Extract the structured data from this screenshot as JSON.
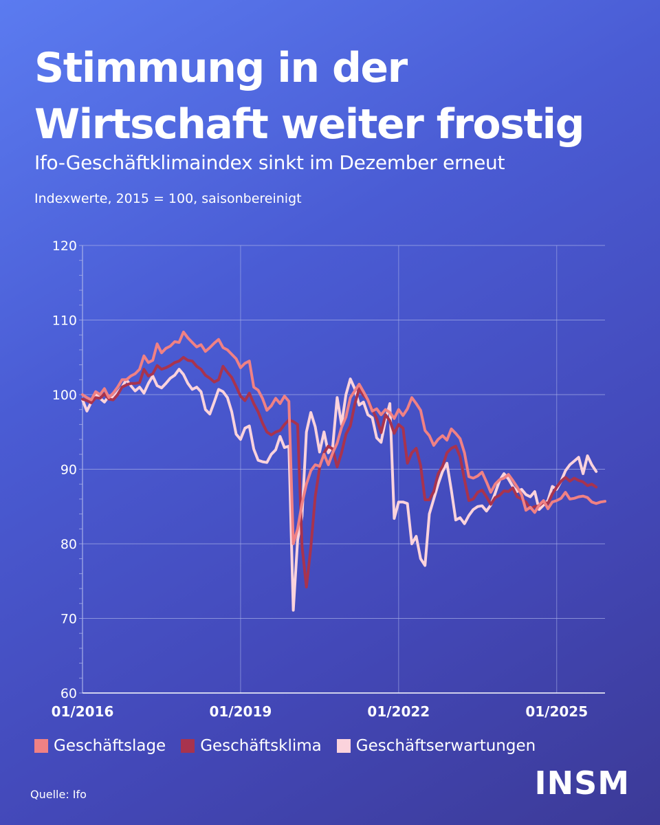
{
  "header": {
    "title_line1": "Stimmung in der",
    "title_line2": "Wirtschaft weiter frostig",
    "subtitle": "Ifo-Geschäftklimaindex sinkt im Dezember erneut",
    "note": "Indexwerte, 2015 = 100, saisonbereinigt"
  },
  "footer": {
    "source": "Quelle: Ifo",
    "logo": "INSM"
  },
  "colors": {
    "lage": "#f08184",
    "klima": "#a8334e",
    "erwartungen": "#fbd3dc",
    "grid": "#a8b0e8",
    "text": "#ffffff"
  },
  "chart_data": {
    "type": "line",
    "title": "Stimmung in der Wirtschaft weiter frostig",
    "xlabel": "",
    "ylabel": "Indexwerte, 2015 = 100, saisonbereinigt",
    "ylim": [
      60,
      120
    ],
    "yticks": [
      60,
      70,
      80,
      90,
      100,
      110,
      120
    ],
    "xticks": [
      {
        "label": "01/2016",
        "index": 0
      },
      {
        "label": "01/2019",
        "index": 36
      },
      {
        "label": "01/2022",
        "index": 72
      },
      {
        "label": "01/2025",
        "index": 108
      }
    ],
    "x_start": "01/2016",
    "x_end": "12/2025",
    "grid": true,
    "series": [
      {
        "name": "Geschäftslage",
        "color": "#f08184",
        "values": [
          100.0,
          99.6,
          99.3,
          100.4,
          100.0,
          100.8,
          99.6,
          100.2,
          101.0,
          102.0,
          102.0,
          102.5,
          102.8,
          103.4,
          105.2,
          104.3,
          104.6,
          106.8,
          105.6,
          106.2,
          106.5,
          107.1,
          107.0,
          108.4,
          107.6,
          107.0,
          106.4,
          106.7,
          105.8,
          106.3,
          106.9,
          107.4,
          106.3,
          106.0,
          105.4,
          104.8,
          103.6,
          104.2,
          104.5,
          101.0,
          100.6,
          99.5,
          97.9,
          98.5,
          99.5,
          98.8,
          99.8,
          99.1,
          80.0,
          82.0,
          85.4,
          88.0,
          89.8,
          90.6,
          90.4,
          92.0,
          90.6,
          92.2,
          93.5,
          95.6,
          97.0,
          99.6,
          100.5,
          101.4,
          100.4,
          99.3,
          97.8,
          98.1,
          97.3,
          98.0,
          97.6,
          96.8,
          98.0,
          97.2,
          98.1,
          99.6,
          98.8,
          97.9,
          95.2,
          94.5,
          93.2,
          94.0,
          94.5,
          93.9,
          95.4,
          94.8,
          94.1,
          92.2,
          89.0,
          88.8,
          89.1,
          89.6,
          88.3,
          86.9,
          88.0,
          88.6,
          88.8,
          89.3,
          88.5,
          87.6,
          86.6,
          84.5,
          84.9,
          84.2,
          85.2,
          85.8,
          84.7,
          85.6,
          85.8,
          86.1,
          86.9,
          86.0,
          86.1,
          86.3,
          86.4,
          86.2,
          85.6,
          85.4,
          85.6,
          85.7
        ]
      },
      {
        "name": "Geschäftsklima",
        "color": "#a8334e",
        "values": [
          99.4,
          99.2,
          98.9,
          99.6,
          99.5,
          100.1,
          99.4,
          99.3,
          100.0,
          101.0,
          101.3,
          101.5,
          101.5,
          101.6,
          103.4,
          102.5,
          102.8,
          103.9,
          103.4,
          103.6,
          103.9,
          104.3,
          104.5,
          105.0,
          104.6,
          104.5,
          103.8,
          103.4,
          102.6,
          102.2,
          101.7,
          102.0,
          103.8,
          103.0,
          102.3,
          101.1,
          99.8,
          99.2,
          100.2,
          98.8,
          97.7,
          96.2,
          95.0,
          94.6,
          95.0,
          95.2,
          96.0,
          96.6,
          96.4,
          96.0,
          79.7,
          74.2,
          79.5,
          86.3,
          90.2,
          92.2,
          93.1,
          92.7,
          90.3,
          92.2,
          94.7,
          95.8,
          98.7,
          100.8,
          99.9,
          99.3,
          98.0,
          96.8,
          94.9,
          97.3,
          96.5,
          94.8,
          96.0,
          95.5,
          90.8,
          92.2,
          92.8,
          90.5,
          85.9,
          85.9,
          87.0,
          89.4,
          90.4,
          92.2,
          92.8,
          93.1,
          91.7,
          88.6,
          85.8,
          86.0,
          86.9,
          87.2,
          86.3,
          85.3,
          86.2,
          86.5,
          87.1,
          87.0,
          87.5,
          86.3,
          86.0,
          85.6,
          84.7,
          85.0,
          85.1,
          85.6,
          85.4,
          86.7,
          87.6,
          88.4,
          88.9,
          88.4,
          88.8,
          88.5,
          88.3,
          87.8,
          88.0,
          87.6
        ]
      },
      {
        "name": "Geschäftserwartungen",
        "color": "#fbd3dc",
        "values": [
          99.3,
          97.8,
          99.0,
          100.0,
          99.5,
          99.0,
          99.8,
          99.6,
          100.3,
          101.0,
          102.0,
          101.2,
          100.5,
          101.0,
          100.2,
          101.5,
          102.5,
          101.2,
          100.9,
          101.5,
          102.2,
          102.6,
          103.4,
          102.7,
          101.5,
          100.7,
          101.0,
          100.4,
          98.0,
          97.4,
          99.0,
          100.7,
          100.4,
          99.6,
          97.7,
          94.7,
          94.0,
          95.5,
          95.8,
          92.7,
          91.2,
          91.0,
          90.9,
          92.0,
          92.6,
          94.4,
          92.9,
          93.1,
          71.1,
          80.5,
          83.7,
          95.0,
          97.6,
          95.7,
          92.3,
          95.0,
          92.2,
          93.1,
          99.6,
          96.0,
          100.0,
          102.1,
          100.8,
          98.6,
          99.0,
          97.3,
          96.9,
          94.2,
          93.6,
          96.6,
          98.8,
          83.4,
          85.6,
          85.6,
          85.4,
          80.0,
          81.0,
          78.0,
          77.1,
          84.0,
          86.0,
          88.0,
          89.7,
          90.8,
          87.2,
          83.2,
          83.5,
          82.7,
          83.8,
          84.6,
          85.0,
          85.1,
          84.4,
          85.2,
          86.8,
          88.5,
          89.4,
          88.7,
          87.7,
          87.0,
          87.3,
          86.6,
          86.3,
          87.0,
          84.6,
          85.2,
          85.8,
          87.7,
          87.3,
          88.4,
          89.8,
          90.6,
          91.1,
          91.6,
          89.4,
          91.8,
          90.6,
          89.7
        ]
      }
    ]
  }
}
